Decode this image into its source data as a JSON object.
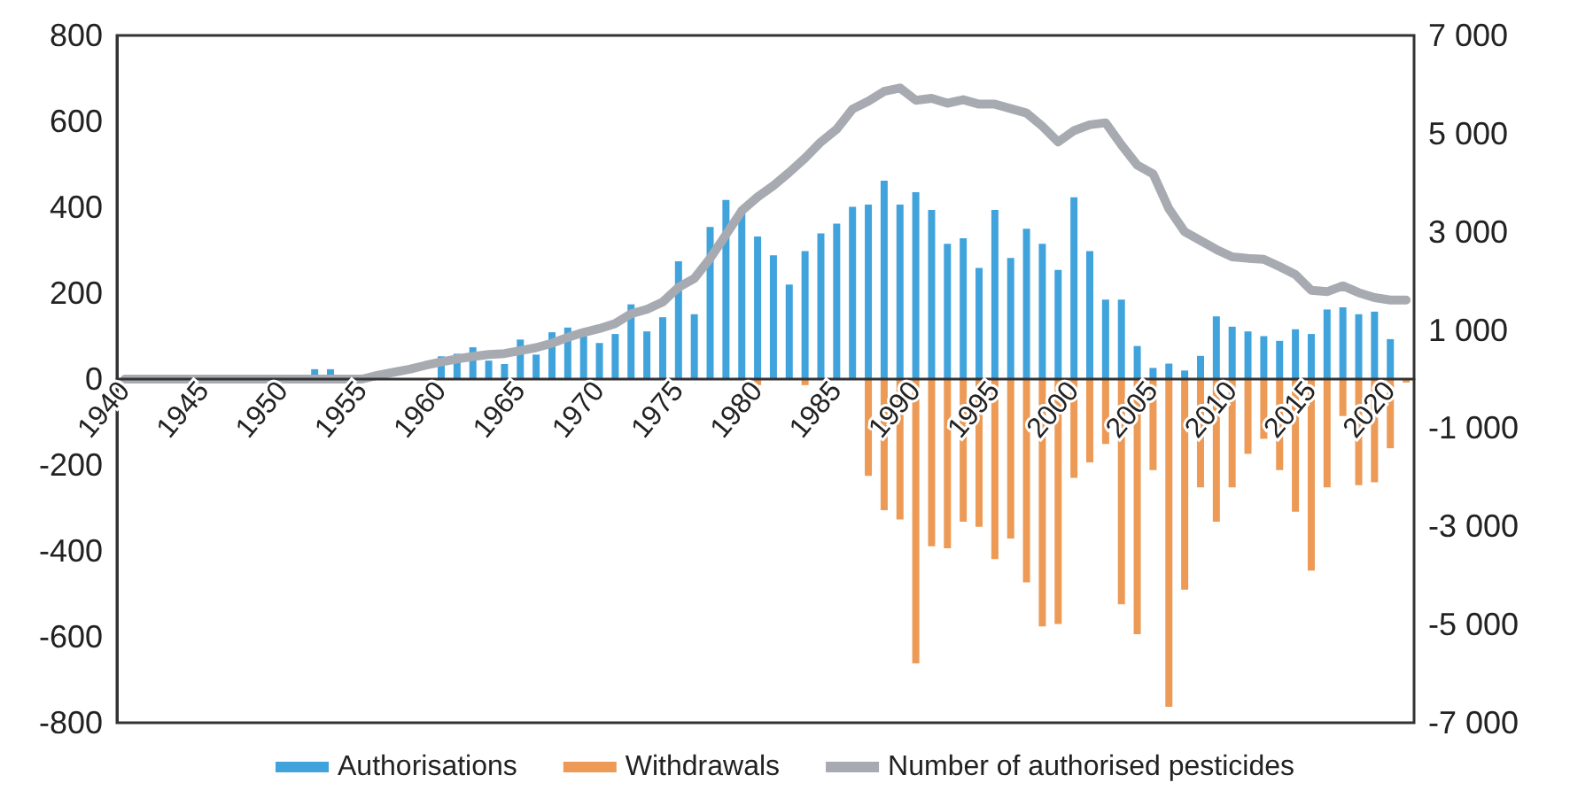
{
  "chart_data": {
    "type": "bar",
    "categories": [
      "1940",
      null,
      null,
      null,
      null,
      "1945",
      null,
      null,
      null,
      null,
      "1950",
      null,
      null,
      null,
      null,
      "1955",
      null,
      null,
      null,
      null,
      "1960",
      null,
      null,
      null,
      null,
      "1965",
      null,
      null,
      null,
      null,
      "1970",
      null,
      null,
      null,
      null,
      "1975",
      null,
      null,
      null,
      null,
      "1980",
      null,
      null,
      null,
      null,
      "1985",
      null,
      null,
      null,
      null,
      "1990",
      null,
      null,
      null,
      null,
      "1995",
      null,
      null,
      null,
      null,
      "2000",
      null,
      null,
      null,
      null,
      "2005",
      null,
      null,
      null,
      null,
      "2010",
      null,
      null,
      null,
      null,
      "2015",
      null,
      null,
      null,
      null,
      "2020",
      null
    ],
    "series": [
      {
        "name": "Authorisations",
        "color": "#41a3dc",
        "values": [
          0,
          0,
          0,
          0,
          0,
          0,
          0,
          0,
          0,
          0,
          0,
          0,
          23,
          23,
          0,
          0,
          0,
          0,
          0,
          0,
          53,
          59,
          74,
          43,
          35,
          92,
          57,
          109,
          120,
          100,
          84,
          105,
          174,
          111,
          144,
          274,
          151,
          354,
          417,
          389,
          332,
          288,
          220,
          298,
          339,
          362,
          401,
          406,
          462,
          406,
          435,
          394,
          315,
          328,
          259,
          394,
          282,
          350,
          315,
          254,
          423,
          298,
          185,
          185,
          77,
          26,
          36,
          20,
          54,
          146,
          122,
          111,
          100,
          89,
          116,
          105,
          162,
          167,
          151,
          157,
          93,
          null
        ]
      },
      {
        "name": "Withdrawals",
        "color": "#ec9a55",
        "values": [
          0,
          0,
          0,
          0,
          0,
          0,
          0,
          0,
          0,
          0,
          0,
          0,
          0,
          0,
          0,
          0,
          0,
          0,
          0,
          0,
          0,
          0,
          0,
          0,
          0,
          0,
          0,
          0,
          0,
          0,
          0,
          0,
          0,
          0,
          0,
          0,
          0,
          0,
          0,
          0,
          -14,
          0,
          0,
          -14,
          0,
          0,
          0,
          -225,
          -305,
          -327,
          -662,
          -389,
          -394,
          -332,
          -344,
          -419,
          -371,
          -473,
          -576,
          -570,
          -230,
          -194,
          -151,
          -524,
          -594,
          -212,
          -763,
          -490,
          -252,
          -332,
          -252,
          -174,
          -139,
          -212,
          -309,
          -446,
          -252,
          -86,
          -247,
          -240,
          -161,
          -8
        ]
      },
      {
        "name": "Number of authorised pesticides",
        "type": "line",
        "axis": "y2",
        "color": "#a7abb1",
        "values": [
          0,
          0,
          0,
          0,
          0,
          0,
          0,
          0,
          0,
          0,
          0,
          0,
          0,
          0,
          0,
          0,
          80,
          140,
          200,
          280,
          350,
          410,
          460,
          500,
          520,
          580,
          640,
          730,
          850,
          950,
          1030,
          1130,
          1330,
          1420,
          1570,
          1870,
          2050,
          2460,
          2940,
          3430,
          3710,
          3940,
          4210,
          4500,
          4830,
          5090,
          5500,
          5660,
          5860,
          5930,
          5680,
          5720,
          5620,
          5690,
          5600,
          5600,
          5510,
          5420,
          5150,
          4830,
          5060,
          5180,
          5220,
          4770,
          4360,
          4180,
          3470,
          3000,
          2820,
          2640,
          2490,
          2460,
          2440,
          2290,
          2130,
          1810,
          1780,
          1900,
          1760,
          1660,
          1610,
          1610
        ]
      }
    ],
    "stacked": true,
    "ylim": [
      -800,
      800
    ],
    "yticks": [
      -800,
      -600,
      -400,
      -200,
      0,
      200,
      400,
      600,
      800
    ],
    "y2lim": [
      -7000,
      7000
    ],
    "y2ticks": [
      {
        "value": -7000,
        "label": "-7 000"
      },
      {
        "value": -5000,
        "label": "-5 000"
      },
      {
        "value": -3000,
        "label": "-3 000"
      },
      {
        "value": -1000,
        "label": "-1 000"
      },
      {
        "value": 1000,
        "label": "1 000"
      },
      {
        "value": 3000,
        "label": "3 000"
      },
      {
        "value": 5000,
        "label": "5 000"
      },
      {
        "value": 7000,
        "label": "7 000"
      }
    ],
    "grid": false,
    "legend": "bottom",
    "marker": "none",
    "line_style": "solid"
  }
}
